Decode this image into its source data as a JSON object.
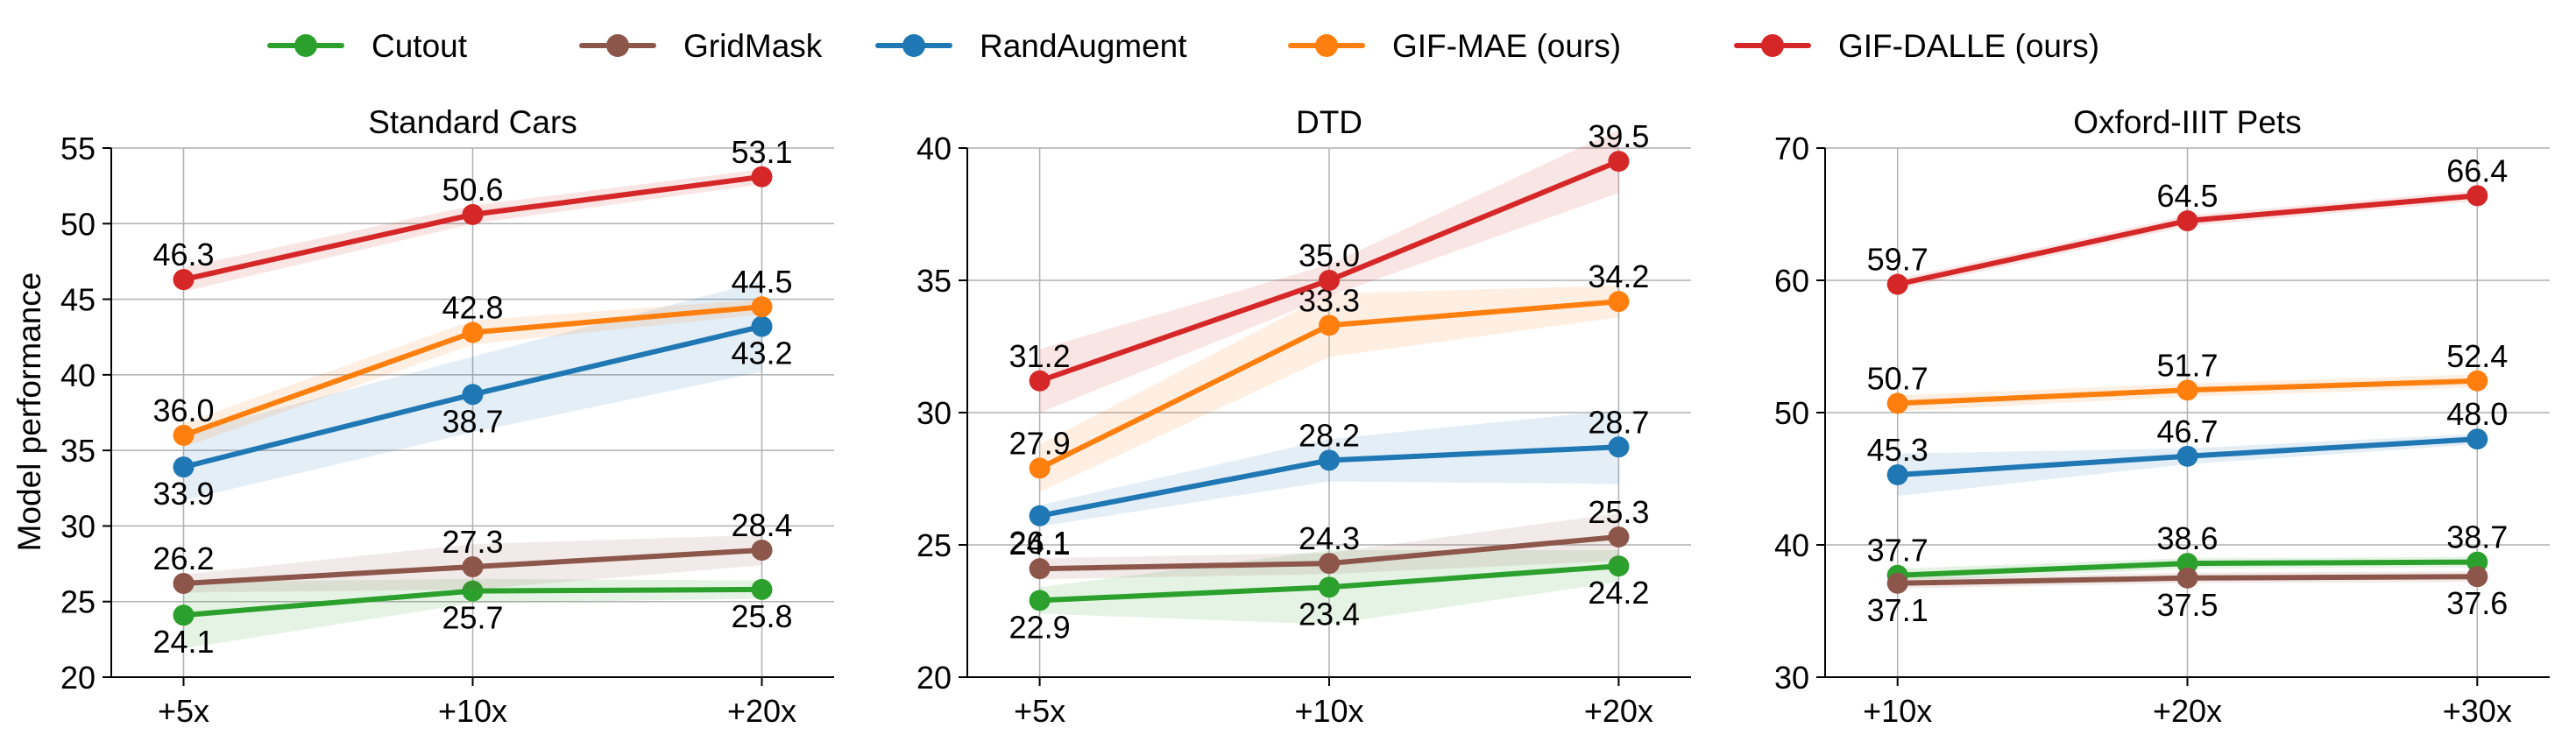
{
  "figure": {
    "ylabel": "Model performance",
    "legend": [
      {
        "key": "cutout",
        "label": "Cutout",
        "color": "#2ca02c"
      },
      {
        "key": "gridmask",
        "label": "GridMask",
        "color": "#8c564b"
      },
      {
        "key": "randaugment",
        "label": "RandAugment",
        "color": "#1f77b4"
      },
      {
        "key": "gifmae",
        "label": "GIF-MAE (ours)",
        "color": "#ff7f0e"
      },
      {
        "key": "gifdalle",
        "label": "GIF-DALLE (ours)",
        "color": "#d62728"
      }
    ]
  },
  "chart_data": [
    {
      "type": "line",
      "title": "Standard Cars",
      "xlabel": "",
      "ylabel": "Model performance",
      "categories": [
        "+5x",
        "+10x",
        "+20x"
      ],
      "ylim": [
        20,
        55
      ],
      "yticks": [
        20,
        25,
        30,
        35,
        40,
        45,
        50,
        55
      ],
      "grid": true,
      "series": [
        {
          "key": "cutout",
          "name": "Cutout",
          "color": "#2ca02c",
          "values": [
            24.1,
            25.7,
            25.8
          ],
          "labels": [
            "24.1",
            "25.7",
            "25.8"
          ],
          "label_pos": [
            "below",
            "below",
            "below"
          ],
          "band": [
            2.2,
            0.8,
            0.6
          ]
        },
        {
          "key": "gridmask",
          "name": "GridMask",
          "color": "#8c564b",
          "values": [
            26.2,
            27.3,
            28.4
          ],
          "labels": [
            "26.2",
            "27.3",
            "28.4"
          ],
          "label_pos": [
            "above",
            "above",
            "above"
          ],
          "band": [
            0.6,
            1.5,
            1.0
          ]
        },
        {
          "key": "randaugment",
          "name": "RandAugment",
          "color": "#1f77b4",
          "values": [
            33.9,
            38.7,
            43.2
          ],
          "labels": [
            "33.9",
            "38.7",
            "43.2"
          ],
          "label_pos": [
            "below",
            "below",
            "below"
          ],
          "band": [
            2.2,
            2.5,
            3.0
          ]
        },
        {
          "key": "gifmae",
          "name": "GIF-MAE (ours)",
          "color": "#ff7f0e",
          "values": [
            36.0,
            42.8,
            44.5
          ],
          "labels": [
            "36.0",
            "42.8",
            "44.5"
          ],
          "label_pos": [
            "above",
            "above",
            "above"
          ],
          "band": [
            0.8,
            0.8,
            0.5
          ]
        },
        {
          "key": "gifdalle",
          "name": "GIF-DALLE (ours)",
          "color": "#d62728",
          "values": [
            46.3,
            50.6,
            53.1
          ],
          "labels": [
            "46.3",
            "50.6",
            "53.1"
          ],
          "label_pos": [
            "above",
            "above",
            "above"
          ],
          "band": [
            0.8,
            0.6,
            0.5
          ]
        }
      ]
    },
    {
      "type": "line",
      "title": "DTD",
      "xlabel": "",
      "ylabel": "",
      "categories": [
        "+5x",
        "+10x",
        "+20x"
      ],
      "ylim": [
        20,
        40
      ],
      "yticks": [
        20,
        25,
        30,
        35,
        40
      ],
      "grid": true,
      "series": [
        {
          "key": "cutout",
          "name": "Cutout",
          "color": "#2ca02c",
          "values": [
            22.9,
            23.4,
            24.2
          ],
          "labels": [
            "22.9",
            "23.4",
            "24.2"
          ],
          "label_pos": [
            "below",
            "below",
            "below"
          ],
          "band": [
            0.5,
            1.4,
            0.6
          ]
        },
        {
          "key": "gridmask",
          "name": "GridMask",
          "color": "#8c564b",
          "values": [
            24.1,
            24.3,
            25.3
          ],
          "labels": [
            "24.1",
            "24.3",
            "25.3"
          ],
          "label_pos": [
            "above",
            "above",
            "above"
          ],
          "band": [
            0.4,
            0.4,
            0.9
          ]
        },
        {
          "key": "randaugment",
          "name": "RandAugment",
          "color": "#1f77b4",
          "values": [
            26.1,
            28.2,
            28.7
          ],
          "labels": [
            "26.1",
            "28.2",
            "28.7"
          ],
          "label_pos": [
            "below",
            "above",
            "above"
          ],
          "band": [
            0.4,
            0.8,
            1.4
          ]
        },
        {
          "key": "gifmae",
          "name": "GIF-MAE (ours)",
          "color": "#ff7f0e",
          "values": [
            27.9,
            33.3,
            34.2
          ],
          "labels": [
            "27.9",
            "33.3",
            "34.2"
          ],
          "label_pos": [
            "above",
            "above",
            "above"
          ],
          "band": [
            0.9,
            1.2,
            0.6
          ]
        },
        {
          "key": "gifdalle",
          "name": "GIF-DALLE (ours)",
          "color": "#d62728",
          "values": [
            31.2,
            35.0,
            39.5
          ],
          "labels": [
            "31.2",
            "35.0",
            "39.5"
          ],
          "label_pos": [
            "above",
            "above",
            "above"
          ],
          "band": [
            1.2,
            0.6,
            1.2
          ]
        }
      ]
    },
    {
      "type": "line",
      "title": "Oxford-IIIT Pets",
      "xlabel": "",
      "ylabel": "",
      "categories": [
        "+10x",
        "+20x",
        "+30x"
      ],
      "ylim": [
        30,
        70
      ],
      "yticks": [
        30,
        40,
        50,
        60,
        70
      ],
      "grid": true,
      "series": [
        {
          "key": "cutout",
          "name": "Cutout",
          "color": "#2ca02c",
          "values": [
            37.7,
            38.6,
            38.7
          ],
          "labels": [
            "37.7",
            "38.6",
            "38.7"
          ],
          "label_pos": [
            "above",
            "above",
            "above"
          ],
          "band": [
            0.5,
            0.4,
            0.4
          ]
        },
        {
          "key": "gridmask",
          "name": "GridMask",
          "color": "#8c564b",
          "values": [
            37.1,
            37.5,
            37.6
          ],
          "labels": [
            "37.1",
            "37.5",
            "37.6"
          ],
          "label_pos": [
            "below",
            "below",
            "below"
          ],
          "band": [
            0.4,
            0.4,
            0.4
          ]
        },
        {
          "key": "randaugment",
          "name": "RandAugment",
          "color": "#1f77b4",
          "values": [
            45.3,
            46.7,
            48.0
          ],
          "labels": [
            "45.3",
            "46.7",
            "48.0"
          ],
          "label_pos": [
            "above",
            "above",
            "above"
          ],
          "band": [
            1.6,
            0.6,
            0.4
          ]
        },
        {
          "key": "gifmae",
          "name": "GIF-MAE (ours)",
          "color": "#ff7f0e",
          "values": [
            50.7,
            51.7,
            52.4
          ],
          "labels": [
            "50.7",
            "51.7",
            "52.4"
          ],
          "label_pos": [
            "above",
            "above",
            "above"
          ],
          "band": [
            0.6,
            0.5,
            0.5
          ]
        },
        {
          "key": "gifdalle",
          "name": "GIF-DALLE (ours)",
          "color": "#d62728",
          "values": [
            59.7,
            64.5,
            66.4
          ],
          "labels": [
            "59.7",
            "64.5",
            "66.4"
          ],
          "label_pos": [
            "above",
            "above",
            "above"
          ],
          "band": [
            0.4,
            0.4,
            0.4
          ]
        }
      ]
    }
  ]
}
